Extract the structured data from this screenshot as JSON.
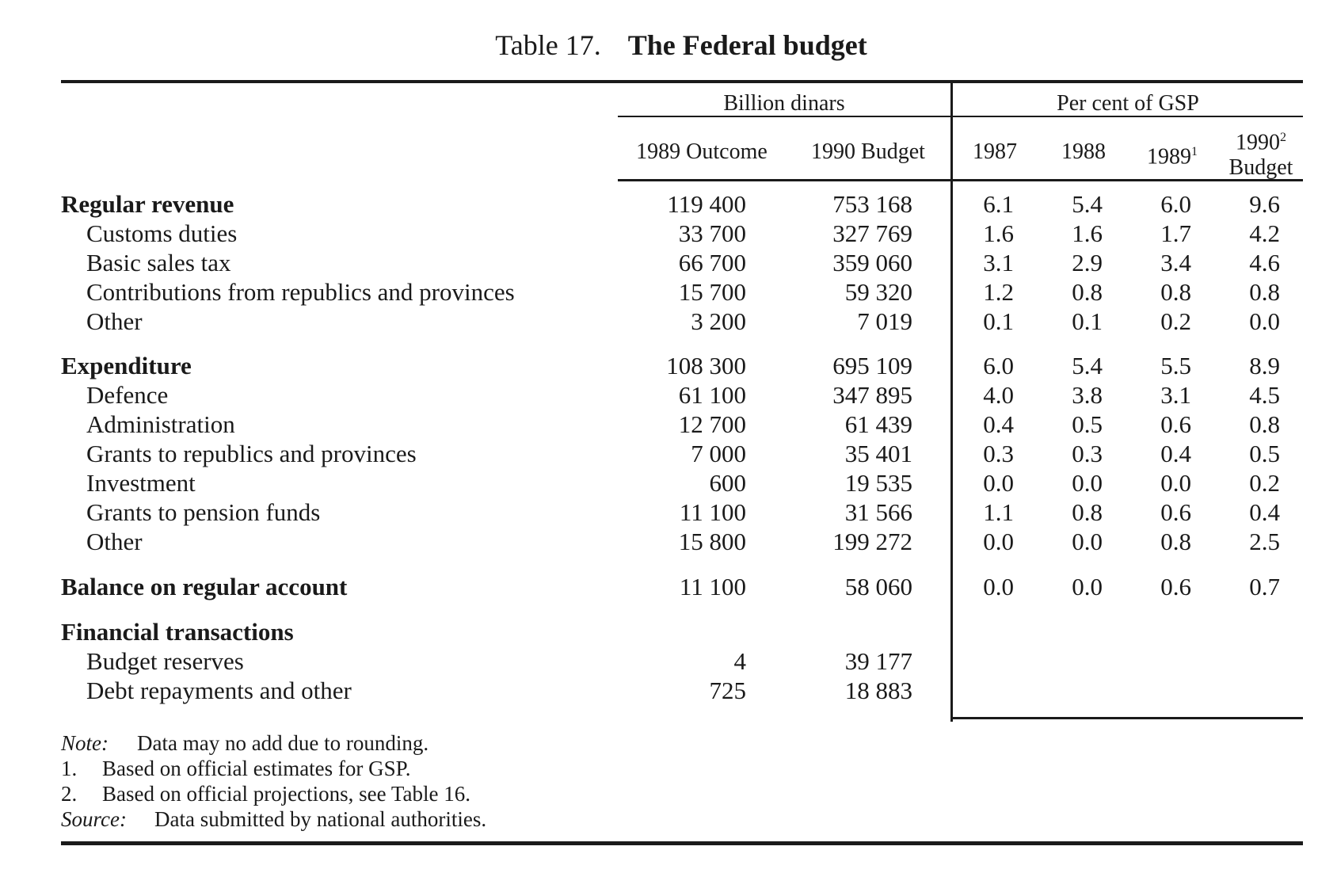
{
  "title": {
    "number": "Table 17.",
    "text": "The Federal budget"
  },
  "headers": {
    "group_billion": "Billion dinars",
    "group_percent": "Per cent of GSP",
    "cols": [
      {
        "line1": "1989 Outcome",
        "line2": "",
        "sup": ""
      },
      {
        "line1": "1990 Budget",
        "line2": "",
        "sup": ""
      },
      {
        "line1": "1987",
        "line2": "",
        "sup": ""
      },
      {
        "line1": "1988",
        "line2": "",
        "sup": ""
      },
      {
        "line1": "1989",
        "line2": "",
        "sup": "1"
      },
      {
        "line1": "1990",
        "line2": "Budget",
        "sup": "2"
      }
    ]
  },
  "rows": [
    {
      "label": "Regular revenue",
      "type": "group",
      "values": [
        "119 400",
        "753 168",
        "6.1",
        "5.4",
        "6.0",
        "9.6"
      ]
    },
    {
      "label": "Customs duties",
      "type": "item",
      "values": [
        "33 700",
        "327 769",
        "1.6",
        "1.6",
        "1.7",
        "4.2"
      ]
    },
    {
      "label": "Basic sales tax",
      "type": "item",
      "values": [
        "66 700",
        "359 060",
        "3.1",
        "2.9",
        "3.4",
        "4.6"
      ]
    },
    {
      "label": "Contributions from republics and provinces",
      "type": "item",
      "values": [
        "15 700",
        "59 320",
        "1.2",
        "0.8",
        "0.8",
        "0.8"
      ]
    },
    {
      "label": "Other",
      "type": "item",
      "values": [
        "3 200",
        "7 019",
        "0.1",
        "0.1",
        "0.2",
        "0.0"
      ]
    },
    {
      "label": "Expenditure",
      "type": "group",
      "values": [
        "108 300",
        "695 109",
        "6.0",
        "5.4",
        "5.5",
        "8.9"
      ]
    },
    {
      "label": "Defence",
      "type": "item",
      "values": [
        "61 100",
        "347 895",
        "4.0",
        "3.8",
        "3.1",
        "4.5"
      ]
    },
    {
      "label": "Administration",
      "type": "item",
      "values": [
        "12 700",
        "61 439",
        "0.4",
        "0.5",
        "0.6",
        "0.8"
      ]
    },
    {
      "label": "Grants to republics and provinces",
      "type": "item",
      "values": [
        "7 000",
        "35 401",
        "0.3",
        "0.3",
        "0.4",
        "0.5"
      ]
    },
    {
      "label": "Investment",
      "type": "item",
      "values": [
        "600",
        "19 535",
        "0.0",
        "0.0",
        "0.0",
        "0.2"
      ]
    },
    {
      "label": "Grants to pension funds",
      "type": "item",
      "values": [
        "11 100",
        "31 566",
        "1.1",
        "0.8",
        "0.6",
        "0.4"
      ]
    },
    {
      "label": "Other",
      "type": "item",
      "values": [
        "15 800",
        "199 272",
        "0.0",
        "0.0",
        "0.8",
        "2.5"
      ]
    },
    {
      "label": "Balance on regular account",
      "type": "group",
      "values": [
        "11 100",
        "58 060",
        "0.0",
        "0.0",
        "0.6",
        "0.7"
      ]
    },
    {
      "label": "Financial transactions",
      "type": "group",
      "values": [
        "",
        "",
        "",
        "",
        "",
        ""
      ]
    },
    {
      "label": "Budget reserves",
      "type": "item",
      "values": [
        "4",
        "39 177",
        "",
        "",
        "",
        ""
      ]
    },
    {
      "label": "Debt repayments and other",
      "type": "item",
      "values": [
        "725",
        "18 883",
        "",
        "",
        "",
        ""
      ]
    }
  ],
  "notes": [
    {
      "prefix": "Note:",
      "italic": true,
      "text": "Data may no add due to rounding."
    },
    {
      "prefix": "1.",
      "italic": false,
      "text": "Based on official estimates for GSP."
    },
    {
      "prefix": "2.",
      "italic": false,
      "text": "Based on official projections, see Table 16."
    },
    {
      "prefix": "Source:",
      "italic": true,
      "text": "Data submitted by national authorities."
    }
  ]
}
